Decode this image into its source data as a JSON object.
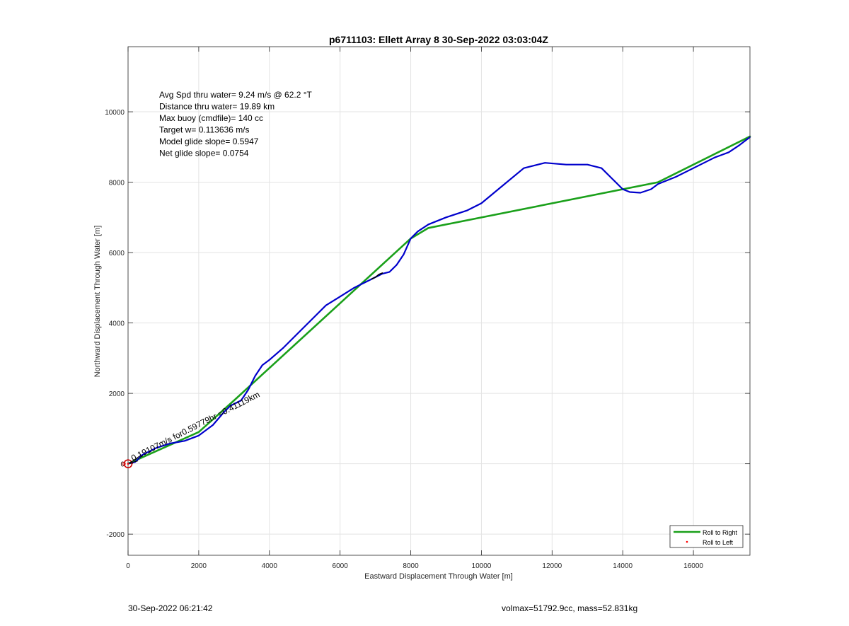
{
  "chart_data": {
    "type": "line",
    "title": "p6711103: Ellett Array 8 30-Sep-2022 03:03:04Z",
    "xlabel": "Eastward Displacement Through Water [m]",
    "ylabel": "Northward Displacement Through Water [m]",
    "xlim": [
      0,
      17600
    ],
    "ylim": [
      -2600,
      11850
    ],
    "xticks": [
      0,
      2000,
      4000,
      6000,
      8000,
      10000,
      12000,
      14000,
      16000
    ],
    "yticks": [
      -2000,
      0,
      2000,
      4000,
      6000,
      8000,
      10000
    ],
    "grid": true,
    "legend_position": "bottom-right",
    "legend": [
      {
        "label": "Roll to Right",
        "color": "#1aa01a",
        "marker": "line"
      },
      {
        "label": "Roll to Left",
        "color": "#ff0000",
        "marker": "dot"
      }
    ],
    "annotations": [
      "Avg Spd thru water=  9.24 m/s @  62.2 °T",
      "Distance thru water= 19.89 km",
      "Max buoy (cmdfile)= 140 cc",
      "Target w= 0.113636 m/s",
      "Model glide slope= 0.5947",
      "Net glide slope= 0.0754"
    ],
    "rotated_label": "0.19107m/s for0.59779hr =0.41119km",
    "series": [
      {
        "color": "#1aa01a",
        "x": [
          0,
          2000,
          3000,
          8000,
          8500,
          15000,
          17600
        ],
        "y": [
          0,
          900,
          1800,
          6400,
          6700,
          8000,
          9300
        ]
      },
      {
        "color": "#0000cc",
        "x": [
          0,
          200,
          400,
          800,
          1200,
          1600,
          2000,
          2400,
          2700,
          2900,
          3200,
          3400,
          3600,
          3800,
          4000,
          4400,
          4800,
          5200,
          5600,
          6000,
          6400,
          6800,
          7000,
          7200,
          7400,
          7600,
          7800,
          8000,
          8200,
          8500,
          9000,
          9600,
          10000,
          10600,
          11200,
          11800,
          12400,
          13000,
          13400,
          13700,
          14000,
          14200,
          14500,
          14800,
          15000,
          15500,
          16000,
          16600,
          17000,
          17300,
          17600
        ],
        "y": [
          0,
          50,
          250,
          450,
          580,
          650,
          800,
          1100,
          1450,
          1650,
          1800,
          2100,
          2500,
          2800,
          2950,
          3300,
          3700,
          4100,
          4500,
          4750,
          5000,
          5200,
          5300,
          5400,
          5450,
          5650,
          5950,
          6400,
          6600,
          6800,
          7000,
          7200,
          7400,
          7900,
          8400,
          8550,
          8500,
          8500,
          8400,
          8100,
          7800,
          7720,
          7700,
          7800,
          7950,
          8150,
          8400,
          8700,
          8850,
          9050,
          9280
        ]
      },
      {
        "color": "#000000",
        "x": [
          6900,
          7000,
          7100,
          7200
        ],
        "y": [
          5250,
          5300,
          5380,
          5420
        ]
      }
    ]
  },
  "footer": {
    "timestamp": "30-Sep-2022 06:21:42",
    "summary": "volmax=51792.9cc, mass=52.831kg"
  }
}
